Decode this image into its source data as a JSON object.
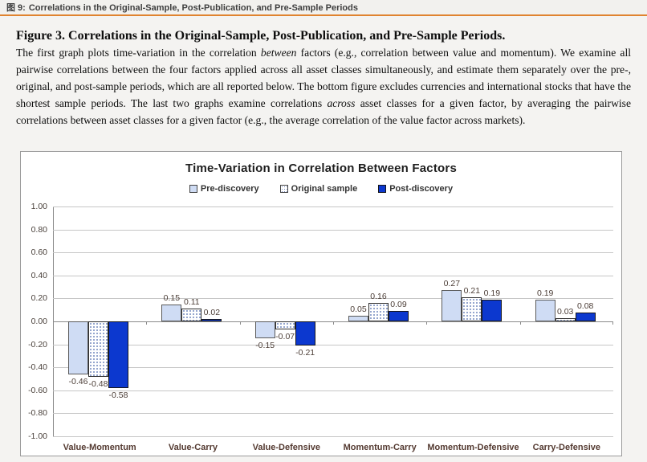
{
  "header": {
    "prefix": "图 9:",
    "title": "Correlations in the Original-Sample, Post-Publication, and Pre-Sample Periods",
    "accent_color": "#e0832f"
  },
  "caption": {
    "heading": "Figure 3. Correlations in the Original-Sample, Post-Publication, and Pre-Sample Periods.",
    "body_segments": [
      {
        "t": "The first graph plots time-variation in the correlation "
      },
      {
        "t": "between",
        "i": true
      },
      {
        "t": " factors (e.g., correlation between value and momentum). We examine all pairwise correlations between the four factors applied across all asset classes simultaneously, and estimate them separately over the pre-, original, and post-sample periods, which are all reported below. The bottom figure excludes currencies and international stocks that have the shortest sample periods. The last two graphs examine correlations "
      },
      {
        "t": "across",
        "i": true
      },
      {
        "t": " asset classes for a given factor, by averaging the pairwise correlations between asset classes for a given factor (e.g., the average correlation of the value factor across markets)."
      }
    ]
  },
  "chart_data": {
    "type": "bar",
    "title": "Time-Variation in Correlation Between Factors",
    "categories": [
      "Value-Momentum",
      "Value-Carry",
      "Value-Defensive",
      "Momentum-Carry",
      "Momentum-Defensive",
      "Carry-Defensive"
    ],
    "series": [
      {
        "name": "Pre-discovery",
        "style": "light",
        "color": "#cfdcf4",
        "values": [
          -0.46,
          0.15,
          -0.15,
          0.05,
          0.27,
          0.19
        ]
      },
      {
        "name": "Original sample",
        "style": "dotted",
        "color": "#ffffff",
        "values": [
          -0.48,
          0.11,
          -0.07,
          0.16,
          0.21,
          0.03
        ]
      },
      {
        "name": "Post-discovery",
        "style": "solid",
        "color": "#0c38cf",
        "values": [
          -0.58,
          0.02,
          -0.21,
          0.09,
          0.19,
          0.08
        ]
      }
    ],
    "ylim": [
      -1.0,
      1.0
    ],
    "ytick_step": 0.2,
    "ytick_labels": [
      "1.00",
      "0.80",
      "0.60",
      "0.40",
      "0.20",
      "0.00",
      "-0.20",
      "-0.40",
      "-0.60",
      "-0.80",
      "-1.00"
    ],
    "grid": true,
    "legend_position": "top"
  }
}
